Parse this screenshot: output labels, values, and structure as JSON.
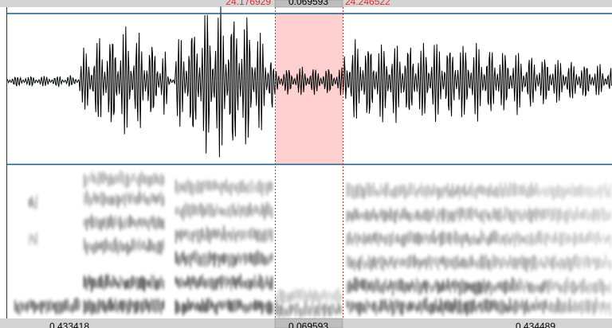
{
  "top_bar": {
    "start": "24.176929",
    "duration": "0.069593",
    "end": "24.246522"
  },
  "bottom_bar": {
    "left": "0.433418",
    "selection": "0.069593",
    "right": "0.434489"
  }
}
